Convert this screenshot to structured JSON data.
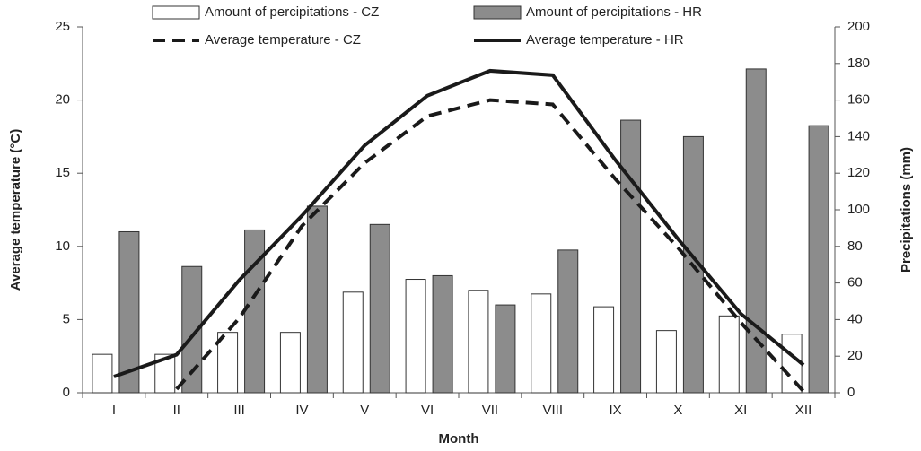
{
  "chart_data": {
    "type": "bar-line",
    "x_label": "Month",
    "y_label": "Average temperature (°C)",
    "y2_label": "Precipitations (mm)",
    "categories": [
      "I",
      "II",
      "III",
      "IV",
      "V",
      "VI",
      "VII",
      "VIII",
      "IX",
      "X",
      "XI",
      "XII"
    ],
    "ylim": [
      0,
      25
    ],
    "yticks": [
      0,
      5,
      10,
      15,
      20,
      25
    ],
    "y2lim": [
      0,
      200
    ],
    "y2ticks": [
      0,
      20,
      40,
      60,
      80,
      100,
      120,
      140,
      160,
      180,
      200
    ],
    "legend": "top",
    "series": [
      {
        "name": "Amount of percipitations - CZ",
        "kind": "bar",
        "axis": "y2",
        "color": "#ffffff",
        "values": [
          21,
          21,
          33,
          33,
          55,
          62,
          56,
          54,
          47,
          34,
          42,
          32
        ]
      },
      {
        "name": "Amount of percipitations - HR",
        "kind": "bar",
        "axis": "y2",
        "color": "#8c8c8c",
        "values": [
          88,
          69,
          89,
          102,
          92,
          64,
          48,
          78,
          149,
          140,
          177,
          146
        ]
      },
      {
        "name": "Average temperature - CZ",
        "kind": "line",
        "dashed": true,
        "color": "#1a1a1a",
        "values": [
          null,
          0.25,
          5.1,
          11.4,
          15.7,
          18.9,
          20.0,
          19.7,
          14.6,
          9.9,
          4.8,
          0.1
        ]
      },
      {
        "name": "Average temperature - HR",
        "kind": "line",
        "dashed": false,
        "color": "#1a1a1a",
        "values": [
          1.1,
          2.6,
          7.7,
          12.1,
          16.9,
          20.3,
          22.0,
          21.7,
          15.9,
          10.5,
          5.4,
          1.9
        ]
      }
    ]
  }
}
